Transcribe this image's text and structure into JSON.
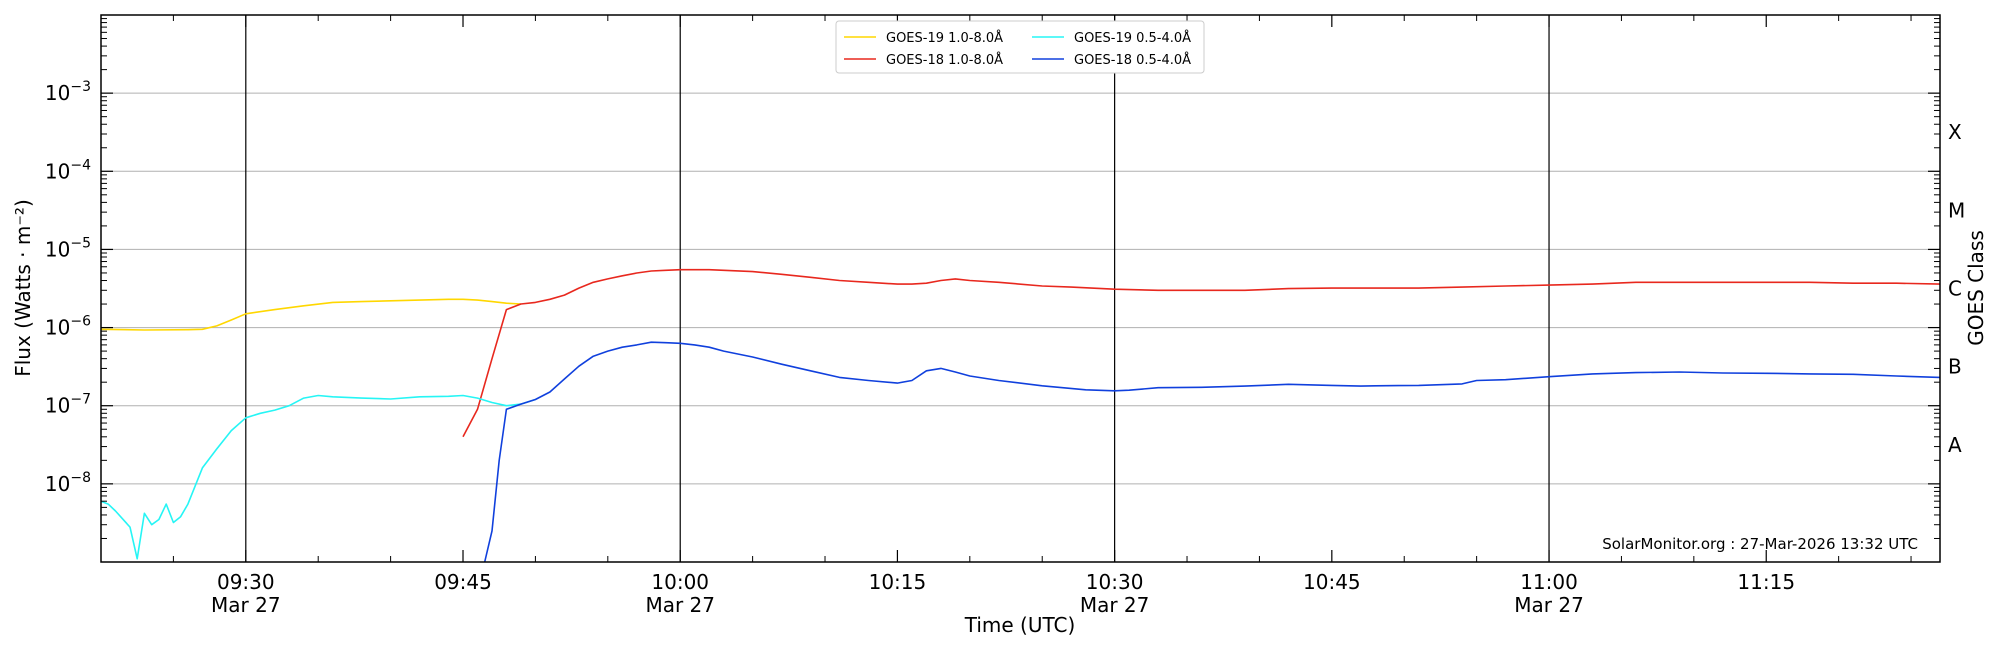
{
  "chart_data": {
    "type": "line",
    "xlabel": "Time (UTC)",
    "ylabel": "Flux (Watts · m⁻²)",
    "ylabel_right": "GOES Class",
    "x_range": [
      "09:20",
      "11:27"
    ],
    "y_scale": "log",
    "ylim": [
      1e-09,
      0.01
    ],
    "y_ticks": [
      {
        "value": 1e-08,
        "base": "10",
        "exp": "−8"
      },
      {
        "value": 1e-07,
        "base": "10",
        "exp": "−7"
      },
      {
        "value": 1e-06,
        "base": "10",
        "exp": "−6"
      },
      {
        "value": 1e-05,
        "base": "10",
        "exp": "−5"
      },
      {
        "value": 0.0001,
        "base": "10",
        "exp": "−4"
      },
      {
        "value": 0.001,
        "base": "10",
        "exp": "−3"
      }
    ],
    "x_ticks": [
      {
        "time": "09:30",
        "label": "09:30",
        "date": "Mar 27"
      },
      {
        "time": "09:45",
        "label": "09:45",
        "date": ""
      },
      {
        "time": "10:00",
        "label": "10:00",
        "date": "Mar 27"
      },
      {
        "time": "10:15",
        "label": "10:15",
        "date": ""
      },
      {
        "time": "10:30",
        "label": "10:30",
        "date": "Mar 27"
      },
      {
        "time": "10:45",
        "label": "10:45",
        "date": ""
      },
      {
        "time": "11:00",
        "label": "11:00",
        "date": "Mar 27"
      },
      {
        "time": "11:15",
        "label": "11:15",
        "date": ""
      }
    ],
    "vlines": [
      "09:30",
      "10:00",
      "10:30",
      "11:00"
    ],
    "class_labels": [
      {
        "label": "A",
        "value": 3.16e-08
      },
      {
        "label": "B",
        "value": 3.16e-07
      },
      {
        "label": "C",
        "value": 3.16e-06
      },
      {
        "label": "M",
        "value": 3.16e-05
      },
      {
        "label": "X",
        "value": 0.000316
      }
    ],
    "grid": "horizontal",
    "legend_position": "top-center",
    "credit": "SolarMonitor.org : 27-Mar-2026 13:32 UTC",
    "series": [
      {
        "name": "GOES-19 1.0-8.0Å",
        "color": "#ffd700",
        "x": [
          "09:20",
          "09:23",
          "09:26",
          "09:27",
          "09:28",
          "09:29",
          "09:30",
          "09:32",
          "09:34",
          "09:36",
          "09:38",
          "09:40",
          "09:42",
          "09:44",
          "09:45",
          "09:46",
          "09:47",
          "09:48",
          "09:49"
        ],
        "y": [
          9.5e-07,
          9.3e-07,
          9.4e-07,
          9.5e-07,
          1.05e-06,
          1.25e-06,
          1.5e-06,
          1.7e-06,
          1.9e-06,
          2.1e-06,
          2.15e-06,
          2.2e-06,
          2.25e-06,
          2.3e-06,
          2.3e-06,
          2.25e-06,
          2.15e-06,
          2.05e-06,
          2e-06
        ]
      },
      {
        "name": "GOES-18 1.0-8.0Å",
        "color": "#e8281e",
        "x": [
          "09:45",
          "09:46",
          "09:47",
          "09:48",
          "09:49",
          "09:50",
          "09:51",
          "09:52",
          "09:53",
          "09:54",
          "09:55",
          "09:56",
          "09:57",
          "09:58",
          "09:59",
          "10:00",
          "10:01",
          "10:02",
          "10:03",
          "10:05",
          "10:07",
          "10:09",
          "10:11",
          "10:13",
          "10:15",
          "10:16",
          "10:17",
          "10:18",
          "10:19",
          "10:20",
          "10:22",
          "10:25",
          "10:27",
          "10:30",
          "10:33",
          "10:36",
          "10:39",
          "10:42",
          "10:45",
          "10:48",
          "10:51",
          "10:54",
          "10:57",
          "11:00",
          "11:03",
          "11:06",
          "11:09",
          "11:12",
          "11:15",
          "11:18",
          "11:21",
          "11:24",
          "11:27"
        ],
        "y": [
          4e-08,
          9e-08,
          4e-07,
          1.7e-06,
          2e-06,
          2.1e-06,
          2.3e-06,
          2.6e-06,
          3.2e-06,
          3.8e-06,
          4.2e-06,
          4.6e-06,
          5e-06,
          5.3e-06,
          5.4e-06,
          5.5e-06,
          5.5e-06,
          5.5e-06,
          5.4e-06,
          5.2e-06,
          4.8e-06,
          4.4e-06,
          4e-06,
          3.8e-06,
          3.6e-06,
          3.6e-06,
          3.7e-06,
          4e-06,
          4.2e-06,
          4e-06,
          3.8e-06,
          3.4e-06,
          3.3e-06,
          3.1e-06,
          3e-06,
          3e-06,
          3e-06,
          3.15e-06,
          3.2e-06,
          3.2e-06,
          3.2e-06,
          3.3e-06,
          3.4e-06,
          3.5e-06,
          3.6e-06,
          3.8e-06,
          3.8e-06,
          3.8e-06,
          3.8e-06,
          3.8e-06,
          3.7e-06,
          3.7e-06,
          3.6e-06
        ]
      },
      {
        "name": "GOES-19 0.5-4.0Å",
        "color": "#26f5f5",
        "x": [
          "09:20",
          "09:20.5",
          "09:21",
          "09:22",
          "09:22.5",
          "09:23",
          "09:23.5",
          "09:24",
          "09:24.5",
          "09:25",
          "09:25.5",
          "09:26",
          "09:27",
          "09:28",
          "09:29",
          "09:30",
          "09:31",
          "09:32",
          "09:33",
          "09:34",
          "09:35",
          "09:36",
          "09:38",
          "09:40",
          "09:42",
          "09:44",
          "09:45",
          "09:46",
          "09:47",
          "09:48",
          "09:49",
          "09:50"
        ],
        "y": [
          6e-09,
          5.5e-09,
          4.5e-09,
          2.8e-09,
          1.1e-09,
          4.2e-09,
          3e-09,
          3.5e-09,
          5.5e-09,
          3.2e-09,
          3.8e-09,
          5.5e-09,
          1.6e-08,
          2.8e-08,
          4.8e-08,
          7e-08,
          8e-08,
          8.8e-08,
          1e-07,
          1.25e-07,
          1.35e-07,
          1.3e-07,
          1.25e-07,
          1.22e-07,
          1.3e-07,
          1.32e-07,
          1.35e-07,
          1.25e-07,
          1.1e-07,
          1e-07,
          1.05e-07,
          1.2e-07
        ]
      },
      {
        "name": "GOES-18 0.5-4.0Å",
        "color": "#1040dd",
        "x": [
          "09:46.5",
          "09:47",
          "09:47.5",
          "09:48",
          "09:49",
          "09:50",
          "09:51",
          "09:52",
          "09:53",
          "09:54",
          "09:55",
          "09:56",
          "09:57",
          "09:58",
          "09:59",
          "10:00",
          "10:01",
          "10:02",
          "10:03",
          "10:05",
          "10:07",
          "10:09",
          "10:11",
          "10:13",
          "10:15",
          "10:16",
          "10:17",
          "10:18",
          "10:19",
          "10:20",
          "10:22",
          "10:25",
          "10:28",
          "10:30",
          "10:31",
          "10:33",
          "10:36",
          "10:39",
          "10:42",
          "10:45",
          "10:47",
          "10:48",
          "10:51",
          "10:54",
          "10:55",
          "10:57",
          "11:00",
          "11:03",
          "11:06",
          "11:09",
          "11:12",
          "11:15",
          "11:18",
          "11:21",
          "11:24",
          "11:27"
        ],
        "y": [
          1e-09,
          2.5e-09,
          2e-08,
          9e-08,
          1.05e-07,
          1.2e-07,
          1.5e-07,
          2.2e-07,
          3.2e-07,
          4.3e-07,
          5e-07,
          5.6e-07,
          6e-07,
          6.5e-07,
          6.4e-07,
          6.3e-07,
          6e-07,
          5.6e-07,
          5e-07,
          4.2e-07,
          3.4e-07,
          2.8e-07,
          2.3e-07,
          2.1e-07,
          1.95e-07,
          2.1e-07,
          2.8e-07,
          3e-07,
          2.7e-07,
          2.4e-07,
          2.1e-07,
          1.8e-07,
          1.6e-07,
          1.55e-07,
          1.58e-07,
          1.7e-07,
          1.72e-07,
          1.78e-07,
          1.88e-07,
          1.82e-07,
          1.78e-07,
          1.8e-07,
          1.82e-07,
          1.9e-07,
          2.1e-07,
          2.15e-07,
          2.35e-07,
          2.55e-07,
          2.65e-07,
          2.7e-07,
          2.62e-07,
          2.6e-07,
          2.55e-07,
          2.52e-07,
          2.4e-07,
          2.3e-07
        ]
      }
    ]
  }
}
